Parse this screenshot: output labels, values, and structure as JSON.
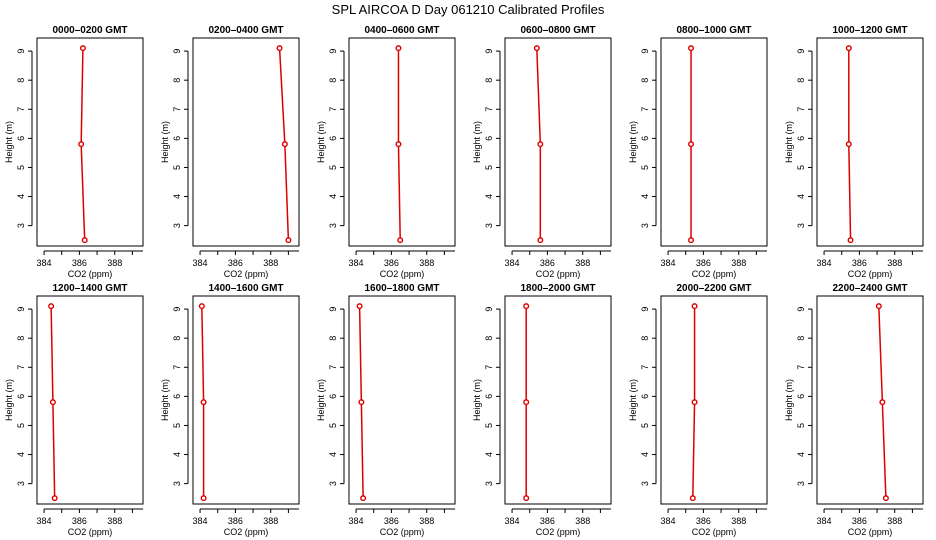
{
  "figure": {
    "title": "SPL AIRCOA D  Day 061210  Calibrated Profiles"
  },
  "chart_data": [
    {
      "type": "line",
      "title": "0000–0200 GMT",
      "xlabel": "CO2 (ppm)",
      "ylabel": "Height (m)",
      "xlim": [
        383.6,
        389.6
      ],
      "ylim": [
        2.3,
        9.45
      ],
      "xticks": [
        384,
        386,
        388
      ],
      "yticks": [
        3,
        4,
        5,
        6,
        7,
        8,
        9
      ],
      "series": [
        {
          "x": [
            386.3,
            386.1,
            386.2
          ],
          "y": [
            2.5,
            5.8,
            9.1
          ]
        }
      ]
    },
    {
      "type": "line",
      "title": "0200–0400 GMT",
      "xlabel": "CO2 (ppm)",
      "ylabel": "Height (m)",
      "xlim": [
        383.6,
        389.6
      ],
      "ylim": [
        2.3,
        9.45
      ],
      "xticks": [
        384,
        386,
        388
      ],
      "yticks": [
        3,
        4,
        5,
        6,
        7,
        8,
        9
      ],
      "series": [
        {
          "x": [
            389.0,
            388.8,
            388.5
          ],
          "y": [
            2.5,
            5.8,
            9.1
          ]
        }
      ]
    },
    {
      "type": "line",
      "title": "0400–0600 GMT",
      "xlabel": "CO2 (ppm)",
      "ylabel": "Height (m)",
      "xlim": [
        383.6,
        389.6
      ],
      "ylim": [
        2.3,
        9.45
      ],
      "xticks": [
        384,
        386,
        388
      ],
      "yticks": [
        3,
        4,
        5,
        6,
        7,
        8,
        9
      ],
      "series": [
        {
          "x": [
            386.5,
            386.4,
            386.4
          ],
          "y": [
            2.5,
            5.8,
            9.1
          ]
        }
      ]
    },
    {
      "type": "line",
      "title": "0600–0800 GMT",
      "xlabel": "CO2 (ppm)",
      "ylabel": "Height (m)",
      "xlim": [
        383.6,
        389.6
      ],
      "ylim": [
        2.3,
        9.45
      ],
      "xticks": [
        384,
        386,
        388
      ],
      "yticks": [
        3,
        4,
        5,
        6,
        7,
        8,
        9
      ],
      "series": [
        {
          "x": [
            385.6,
            385.6,
            385.4
          ],
          "y": [
            2.5,
            5.8,
            9.1
          ]
        }
      ]
    },
    {
      "type": "line",
      "title": "0800–1000 GMT",
      "xlabel": "CO2 (ppm)",
      "ylabel": "Height (m)",
      "xlim": [
        383.6,
        389.6
      ],
      "ylim": [
        2.3,
        9.45
      ],
      "xticks": [
        384,
        386,
        388
      ],
      "yticks": [
        3,
        4,
        5,
        6,
        7,
        8,
        9
      ],
      "series": [
        {
          "x": [
            385.3,
            385.3,
            385.3
          ],
          "y": [
            2.5,
            5.8,
            9.1
          ]
        }
      ]
    },
    {
      "type": "line",
      "title": "1000–1200 GMT",
      "xlabel": "CO2 (ppm)",
      "ylabel": "Height (m)",
      "xlim": [
        383.6,
        389.6
      ],
      "ylim": [
        2.3,
        9.45
      ],
      "xticks": [
        384,
        386,
        388
      ],
      "yticks": [
        3,
        4,
        5,
        6,
        7,
        8,
        9
      ],
      "series": [
        {
          "x": [
            385.5,
            385.4,
            385.4
          ],
          "y": [
            2.5,
            5.8,
            9.1
          ]
        }
      ]
    },
    {
      "type": "line",
      "title": "1200–1400 GMT",
      "xlabel": "CO2 (ppm)",
      "ylabel": "Height (m)",
      "xlim": [
        383.6,
        389.6
      ],
      "ylim": [
        2.3,
        9.45
      ],
      "xticks": [
        384,
        386,
        388
      ],
      "yticks": [
        3,
        4,
        5,
        6,
        7,
        8,
        9
      ],
      "series": [
        {
          "x": [
            384.6,
            384.5,
            384.4
          ],
          "y": [
            2.5,
            5.8,
            9.1
          ]
        }
      ]
    },
    {
      "type": "line",
      "title": "1400–1600 GMT",
      "xlabel": "CO2 (ppm)",
      "ylabel": "Height (m)",
      "xlim": [
        383.6,
        389.6
      ],
      "ylim": [
        2.3,
        9.45
      ],
      "xticks": [
        384,
        386,
        388
      ],
      "yticks": [
        3,
        4,
        5,
        6,
        7,
        8,
        9
      ],
      "series": [
        {
          "x": [
            384.2,
            384.2,
            384.1
          ],
          "y": [
            2.5,
            5.8,
            9.1
          ]
        }
      ]
    },
    {
      "type": "line",
      "title": "1600–1800 GMT",
      "xlabel": "CO2 (ppm)",
      "ylabel": "Height (m)",
      "xlim": [
        383.6,
        389.6
      ],
      "ylim": [
        2.3,
        9.45
      ],
      "xticks": [
        384,
        386,
        388
      ],
      "yticks": [
        3,
        4,
        5,
        6,
        7,
        8,
        9
      ],
      "series": [
        {
          "x": [
            384.4,
            384.3,
            384.2
          ],
          "y": [
            2.5,
            5.8,
            9.1
          ]
        }
      ]
    },
    {
      "type": "line",
      "title": "1800–2000 GMT",
      "xlabel": "CO2 (ppm)",
      "ylabel": "Height (m)",
      "xlim": [
        383.6,
        389.6
      ],
      "ylim": [
        2.3,
        9.45
      ],
      "xticks": [
        384,
        386,
        388
      ],
      "yticks": [
        3,
        4,
        5,
        6,
        7,
        8,
        9
      ],
      "series": [
        {
          "x": [
            384.8,
            384.8,
            384.8
          ],
          "y": [
            2.5,
            5.8,
            9.1
          ]
        }
      ]
    },
    {
      "type": "line",
      "title": "2000–2200 GMT",
      "xlabel": "CO2 (ppm)",
      "ylabel": "Height (m)",
      "xlim": [
        383.6,
        389.6
      ],
      "ylim": [
        2.3,
        9.45
      ],
      "xticks": [
        384,
        386,
        388
      ],
      "yticks": [
        3,
        4,
        5,
        6,
        7,
        8,
        9
      ],
      "series": [
        {
          "x": [
            385.4,
            385.5,
            385.5
          ],
          "y": [
            2.5,
            5.8,
            9.1
          ]
        }
      ]
    },
    {
      "type": "line",
      "title": "2200–2400 GMT",
      "xlabel": "CO2 (ppm)",
      "ylabel": "Height (m)",
      "xlim": [
        383.6,
        389.6
      ],
      "ylim": [
        2.3,
        9.45
      ],
      "xticks": [
        384,
        386,
        388
      ],
      "yticks": [
        3,
        4,
        5,
        6,
        7,
        8,
        9
      ],
      "series": [
        {
          "x": [
            387.5,
            387.3,
            387.1
          ],
          "y": [
            2.5,
            5.8,
            9.1
          ]
        }
      ]
    }
  ],
  "style": {
    "series_color": "#dd0000",
    "axis_color": "#000000",
    "background": "#ffffff",
    "marker": "open-circle"
  }
}
